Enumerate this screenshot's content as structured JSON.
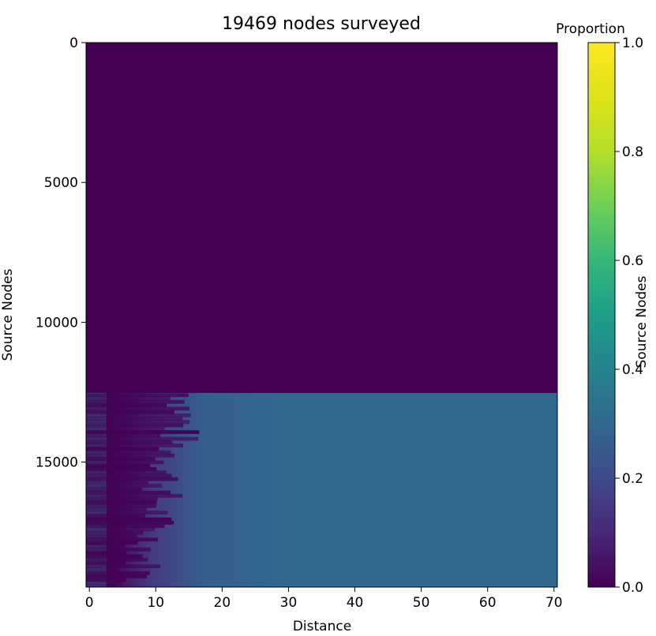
{
  "chart_data": {
    "type": "heatmap",
    "title": "19469 nodes surveyed",
    "xlabel": "Distance",
    "ylabel": "Source Nodes",
    "xlim": [
      -0.5,
      70.5
    ],
    "ylim": [
      19469,
      0
    ],
    "x_ticks": [
      "0",
      "10",
      "20",
      "30",
      "40",
      "50",
      "60",
      "70"
    ],
    "y_ticks": [
      "0",
      "5000",
      "10000",
      "15000"
    ],
    "colorbar": {
      "label": "Proportion",
      "secondary_label": "Source Nodes",
      "range": [
        0.0,
        1.0
      ],
      "ticks": [
        "0.0",
        "0.2",
        "0.4",
        "0.6",
        "0.8",
        "1.0"
      ],
      "colormap": "viridis"
    },
    "regions": [
      {
        "rows": [
          0,
          12540
        ],
        "distance": [
          0,
          70
        ],
        "value": 0.0
      },
      {
        "rows": [
          12540,
          19469
        ],
        "distance": [
          0,
          5
        ],
        "value": 0.0
      },
      {
        "rows": [
          12540,
          19469
        ],
        "distance": [
          5,
          30
        ],
        "value": "ramp 0.0 to 0.33"
      },
      {
        "rows": [
          12540,
          19469
        ],
        "distance": [
          30,
          70
        ],
        "value": 0.33
      }
    ],
    "grid": false
  },
  "colors": {
    "low": "#440154",
    "plateau": "#31688e",
    "high": "#fde725"
  }
}
